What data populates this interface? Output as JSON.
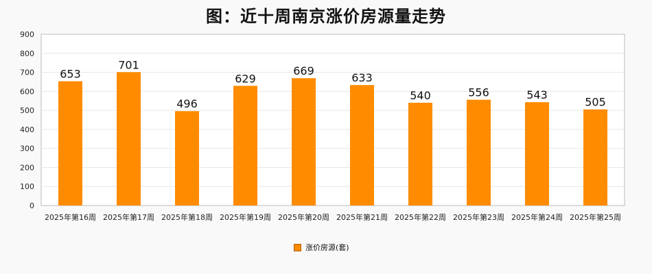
{
  "chart_data": {
    "type": "bar",
    "title": "图：近十周南京涨价房源量走势",
    "categories": [
      "2025年第16周",
      "2025年第17周",
      "2025年第18周",
      "2025年第19周",
      "2025年第20周",
      "2025年第21周",
      "2025年第22周",
      "2025年第23周",
      "2025年第24周",
      "2025年第25周"
    ],
    "series": [
      {
        "name": "涨价房源(套)",
        "values": [
          653,
          701,
          496,
          629,
          669,
          633,
          540,
          556,
          543,
          505
        ]
      }
    ],
    "ylim": [
      0,
      900
    ],
    "yticks": [
      0,
      100,
      200,
      300,
      400,
      500,
      600,
      700,
      800,
      900
    ],
    "grid": true,
    "legend_position": "bottom-center",
    "colors": {
      "bar": "#ff8c00",
      "grid": "#e6e6e6",
      "axis": "#bbbbbb"
    }
  }
}
